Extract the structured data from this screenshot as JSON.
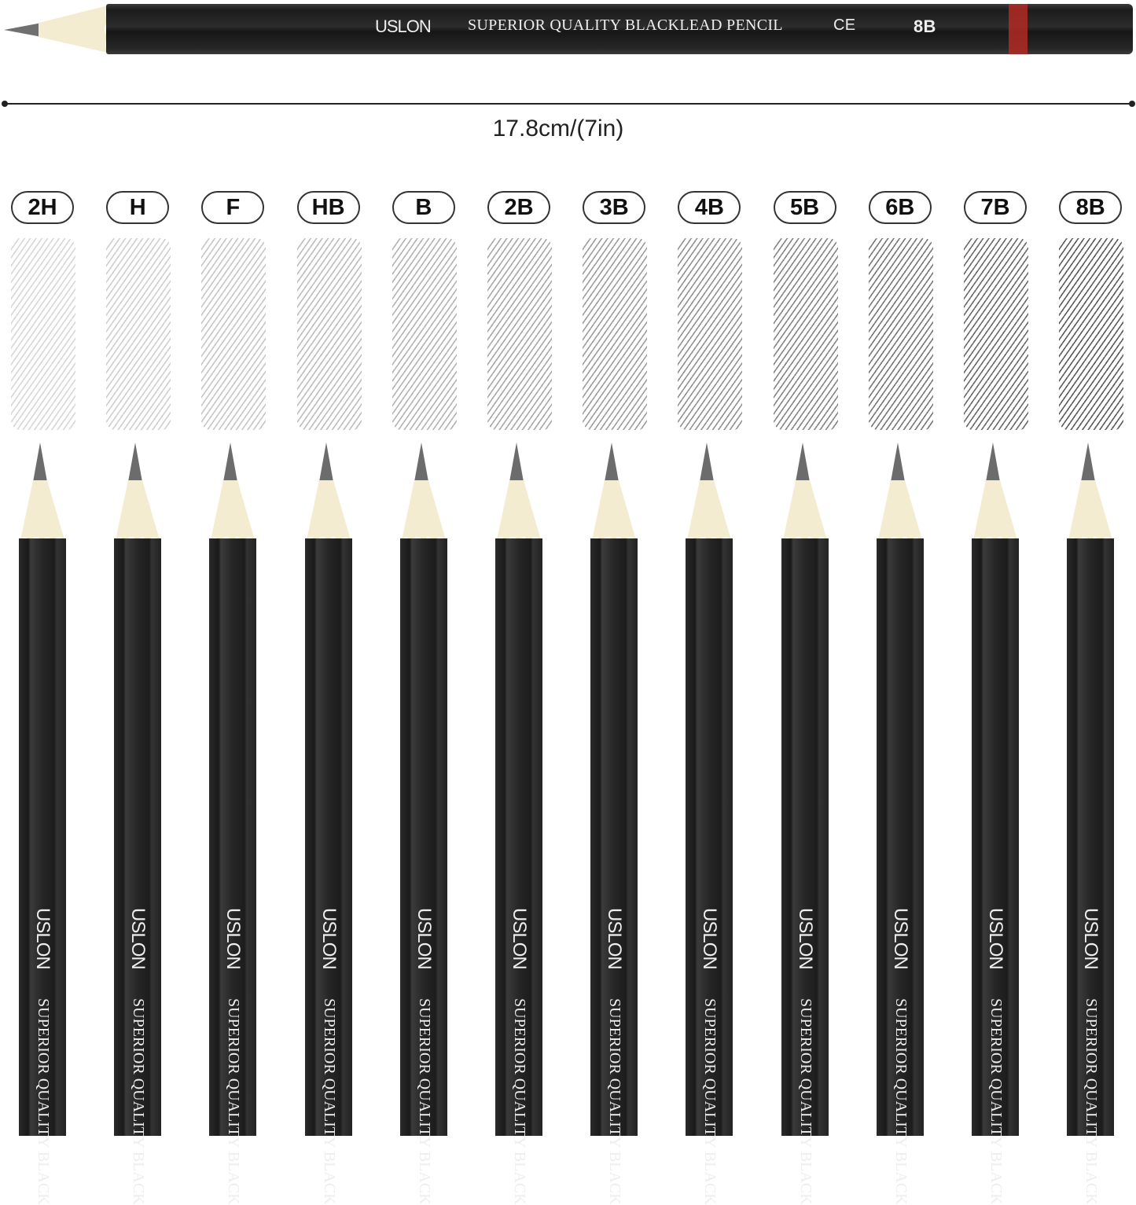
{
  "top_pencil": {
    "brand": "USLON",
    "description": "SUPERIOR QUALITY BLACKLEAD PENCIL",
    "mark": "CE",
    "grade": "8B",
    "band_color": "#b22a25",
    "body_color": "#222222",
    "wood_color": "#f3ecd0",
    "lead_color": "#6e6e6e"
  },
  "dimension": {
    "label": "17.8cm/(7in)"
  },
  "grades": [
    "2H",
    "H",
    "F",
    "HB",
    "B",
    "2B",
    "3B",
    "4B",
    "5B",
    "6B",
    "7B",
    "8B"
  ],
  "pencil_text": {
    "brand": "USLON",
    "description": "SUPERIOR QUALITY BLACK"
  }
}
